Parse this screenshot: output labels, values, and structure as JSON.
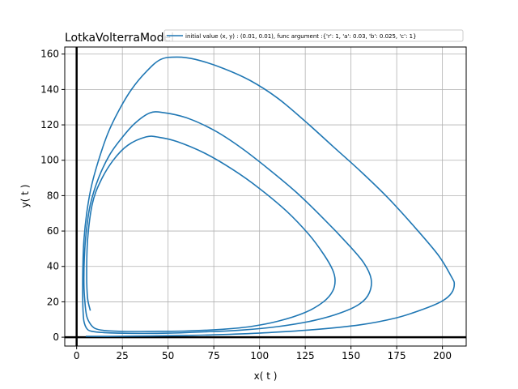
{
  "chart_data": {
    "type": "line",
    "title": "LotkaVolterraModel",
    "xlabel": "x( t )",
    "ylabel": "y( t )",
    "xlim": [
      -6.5,
      213
    ],
    "ylim": [
      -5,
      164
    ],
    "xticks": [
      0,
      25,
      50,
      75,
      100,
      125,
      150,
      175,
      200
    ],
    "yticks": [
      0,
      20,
      40,
      60,
      80,
      100,
      120,
      140,
      160
    ],
    "xtick_labels": [
      "0",
      "25",
      "50",
      "75",
      "100",
      "125",
      "150",
      "175",
      "200"
    ],
    "ytick_labels": [
      "0",
      "20",
      "40",
      "60",
      "80",
      "100",
      "120",
      "140",
      "160"
    ],
    "grid": true,
    "axis_lines_through_origin": true,
    "legend_position": "top-right",
    "colors": {
      "series": "#1f77b4",
      "grid": "#b0b0b0",
      "axes": "#000000"
    },
    "series": [
      {
        "name": "initial value (x, y) : (0.01, 0.01), func argument :{'r': 1, 'a': 0.03, 'b': 0.025, 'c': 1}",
        "loops": [
          [
            [
              7.5,
              15
            ],
            [
              6,
              22
            ],
            [
              5.5,
              35
            ],
            [
              6,
              55
            ],
            [
              8.5,
              75
            ],
            [
              13,
              88
            ],
            [
              20,
              100
            ],
            [
              28,
              108.5
            ],
            [
              38,
              113.2
            ],
            [
              45,
              113
            ],
            [
              55,
              110.5
            ],
            [
              70,
              104
            ],
            [
              85,
              95
            ],
            [
              100,
              84
            ],
            [
              115,
              71
            ],
            [
              127,
              58
            ],
            [
              135,
              47
            ],
            [
              140,
              38
            ],
            [
              141.3,
              32
            ],
            [
              140,
              26
            ],
            [
              135,
              20
            ],
            [
              125,
              14
            ],
            [
              110,
              9
            ],
            [
              95,
              6
            ],
            [
              80,
              4.5
            ],
            [
              60,
              3.5
            ],
            [
              40,
              3.3
            ],
            [
              25,
              3.3
            ],
            [
              15,
              3.8
            ],
            [
              10,
              5
            ],
            [
              7.5,
              7.5
            ],
            [
              5.5,
              12
            ],
            [
              4.5,
              20
            ],
            [
              4,
              30
            ],
            [
              4.2,
              45
            ],
            [
              5.3,
              60
            ],
            [
              7.5,
              75
            ],
            [
              12,
              90
            ],
            [
              18,
              103
            ],
            [
              25,
              113
            ],
            [
              32,
              121
            ],
            [
              40,
              126.7
            ],
            [
              47,
              127
            ],
            [
              60,
              124
            ],
            [
              75,
              117
            ],
            [
              90,
              107
            ],
            [
              105,
              95
            ],
            [
              120,
              82
            ],
            [
              135,
              67
            ],
            [
              148,
              53
            ],
            [
              157,
              42
            ],
            [
              161,
              33
            ],
            [
              160,
              25
            ],
            [
              155,
              19
            ],
            [
              145,
              14
            ],
            [
              130,
              9.5
            ],
            [
              110,
              6
            ],
            [
              90,
              4
            ],
            [
              70,
              3
            ],
            [
              50,
              2.3
            ],
            [
              30,
              2.2
            ],
            [
              15,
              2.6
            ],
            [
              8,
              3.4
            ],
            [
              5.5,
              5
            ],
            [
              4,
              9
            ],
            [
              3.5,
              15
            ],
            [
              3.3,
              25
            ],
            [
              3.4,
              40
            ],
            [
              4,
              55
            ],
            [
              5.5,
              70
            ],
            [
              8,
              85
            ],
            [
              12,
              100
            ],
            [
              17,
              115
            ],
            [
              23,
              128
            ],
            [
              30,
              140
            ],
            [
              38,
              150
            ],
            [
              46,
              157
            ],
            [
              55,
              158.3
            ],
            [
              65,
              157
            ],
            [
              80,
              152
            ],
            [
              95,
              145
            ],
            [
              110,
              135
            ],
            [
              125,
              122
            ],
            [
              140,
              108
            ],
            [
              155,
              94
            ],
            [
              170,
              79
            ],
            [
              185,
              62
            ],
            [
              198,
              46
            ],
            [
              205,
              34
            ],
            [
              206.5,
              30
            ],
            [
              205,
              25
            ],
            [
              200,
              20.5
            ],
            [
              190,
              16
            ],
            [
              175,
              11
            ],
            [
              155,
              7
            ],
            [
              130,
              4.3
            ],
            [
              105,
              2.6
            ],
            [
              80,
              1.5
            ],
            [
              60,
              1.0
            ],
            [
              40,
              0.7
            ],
            [
              20,
              0.5
            ],
            [
              5,
              0.5
            ]
          ]
        ]
      }
    ]
  }
}
